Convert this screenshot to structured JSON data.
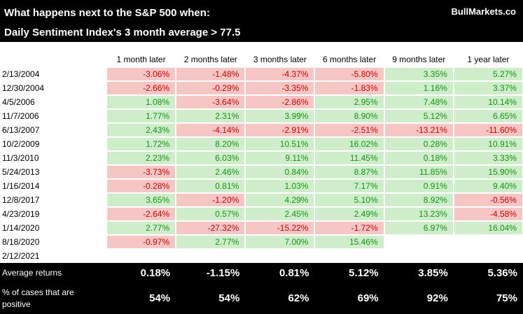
{
  "header": {
    "title_line1": "What happens next to the S&P 500 when:",
    "title_line2": "Daily Sentiment Index's 3 month average > 77.5",
    "brand": "BullMarkets.co"
  },
  "chart_data": {
    "type": "table",
    "title": "What happens next to the S&P 500 when: Daily Sentiment Index's 3 month average > 77.5",
    "columns": [
      "1 month later",
      "2 months later",
      "3 months later",
      "6 months later",
      "9 months later",
      "1 year later"
    ],
    "rows": [
      {
        "date": "2/13/2004",
        "values": [
          "-3.06%",
          "-1.48%",
          "-4.37%",
          "-5.80%",
          "3.35%",
          "5.27%"
        ]
      },
      {
        "date": "12/30/2004",
        "values": [
          "-2.66%",
          "-0.29%",
          "-3.35%",
          "-1.83%",
          "1.16%",
          "3.37%"
        ]
      },
      {
        "date": "4/5/2006",
        "values": [
          "1.08%",
          "-3.64%",
          "-2.86%",
          "2.95%",
          "7.48%",
          "10.14%"
        ]
      },
      {
        "date": "11/7/2006",
        "values": [
          "1.77%",
          "2.31%",
          "3.99%",
          "8.90%",
          "5.12%",
          "6.65%"
        ]
      },
      {
        "date": "6/13/2007",
        "values": [
          "2.43%",
          "-4.14%",
          "-2.91%",
          "-2.51%",
          "-13.21%",
          "-11.60%"
        ]
      },
      {
        "date": "10/2/2009",
        "values": [
          "1.72%",
          "8.20%",
          "10.51%",
          "16.02%",
          "0.28%",
          "10.91%"
        ]
      },
      {
        "date": "11/3/2010",
        "values": [
          "2.23%",
          "6.03%",
          "9.11%",
          "11.45%",
          "0.18%",
          "3.33%"
        ]
      },
      {
        "date": "5/24/2013",
        "values": [
          "-3.73%",
          "2.46%",
          "0.84%",
          "8.87%",
          "11.85%",
          "15.90%"
        ]
      },
      {
        "date": "1/16/2014",
        "values": [
          "-0.28%",
          "0.81%",
          "1.03%",
          "7.17%",
          "0.91%",
          "9.40%"
        ]
      },
      {
        "date": "12/8/2017",
        "values": [
          "3.65%",
          "-1.20%",
          "4.29%",
          "5.10%",
          "8.92%",
          "-0.56%"
        ]
      },
      {
        "date": "4/23/2019",
        "values": [
          "-2.64%",
          "0.57%",
          "2.45%",
          "2.49%",
          "13.23%",
          "-4.58%"
        ]
      },
      {
        "date": "1/14/2020",
        "values": [
          "2.77%",
          "-27.32%",
          "-15.22%",
          "-1.72%",
          "6.97%",
          "16.04%"
        ]
      },
      {
        "date": "8/18/2020",
        "values": [
          "-0.97%",
          "2.77%",
          "7.00%",
          "15.46%",
          "",
          ""
        ]
      },
      {
        "date": "2/12/2021",
        "values": [
          "",
          "",
          "",
          "",
          "",
          ""
        ]
      }
    ],
    "summary": {
      "average_label": "Average returns",
      "average_values": [
        "0.18%",
        "-1.15%",
        "0.81%",
        "5.12%",
        "3.85%",
        "5.36%"
      ],
      "positive_label": "% of cases that are positive",
      "positive_values": [
        "54%",
        "54%",
        "62%",
        "69%",
        "92%",
        "75%"
      ]
    }
  },
  "colors": {
    "header_bg": "#000000",
    "header_text": "#ffffff",
    "positive_bg": "#cfeccb",
    "positive_text": "#129612",
    "negative_bg": "#f5c6c4",
    "negative_text": "#cc0000"
  }
}
